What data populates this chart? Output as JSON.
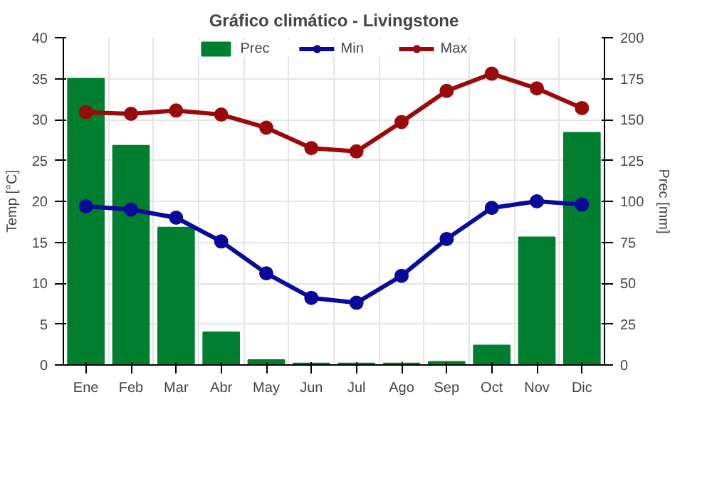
{
  "chart_data": {
    "type": "bar",
    "title": "Gráfico climático - Livingstone",
    "ylabel": "Temp [°C]",
    "y2label": "Prec [mm]",
    "categories": [
      "Ene",
      "Feb",
      "Mar",
      "Abr",
      "May",
      "Jun",
      "Jul",
      "Ago",
      "Sep",
      "Oct",
      "Nov",
      "Dic"
    ],
    "series": [
      {
        "name": "Prec",
        "axis": "y2",
        "color": "#007f31",
        "values": [
          175,
          134,
          84,
          20,
          3,
          1,
          1,
          1,
          2,
          12,
          78,
          142
        ]
      },
      {
        "name": "Min",
        "type": "line",
        "color": "#0a0a9a",
        "values": [
          19.4,
          19.0,
          18.0,
          15.1,
          11.2,
          8.2,
          7.6,
          10.9,
          15.4,
          19.2,
          20.0,
          19.6
        ]
      },
      {
        "name": "Max",
        "type": "line",
        "color": "#9b0a0a",
        "values": [
          30.9,
          30.7,
          31.1,
          30.6,
          29.0,
          26.5,
          26.1,
          29.7,
          33.5,
          35.6,
          33.8,
          31.4
        ]
      }
    ],
    "ylim": [
      0,
      40
    ],
    "yticks": [
      0,
      5,
      10,
      15,
      20,
      25,
      30,
      35,
      40
    ],
    "y2lim": [
      0,
      200
    ],
    "y2ticks": [
      0,
      25,
      50,
      75,
      100,
      125,
      150,
      175,
      200
    ],
    "grid": true,
    "legend": "top center",
    "marker": "circle",
    "line_style": "solid"
  }
}
